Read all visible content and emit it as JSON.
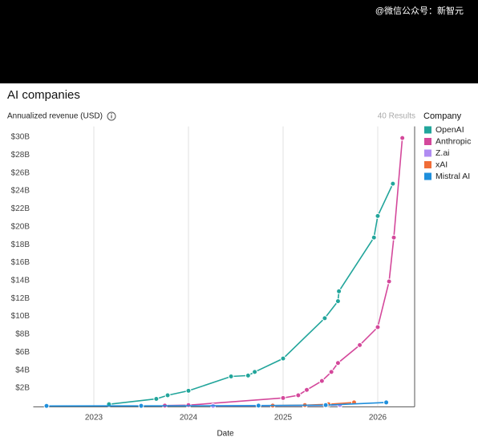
{
  "watermark": "@微信公众号：新智元",
  "chart_data": {
    "type": "line",
    "title": "AI companies",
    "subtitle": "Annualized revenue (USD)",
    "results": "40 Results",
    "legend_title": "Company",
    "x_label": "Date",
    "legend": "right",
    "grid": "x",
    "xlim": [
      2022.36,
      2026.39
    ],
    "xticks": [
      2023,
      2024,
      2025,
      2026
    ],
    "ylim": [
      0,
      31.2
    ],
    "yticks": [
      {
        "value": 2,
        "label": "$2B"
      },
      {
        "value": 4,
        "label": "$4B"
      },
      {
        "value": 6,
        "label": "$6B"
      },
      {
        "value": 8,
        "label": "$8B"
      },
      {
        "value": 10,
        "label": "$10B"
      },
      {
        "value": 12,
        "label": "$12B"
      },
      {
        "value": 14,
        "label": "$14B"
      },
      {
        "value": 16,
        "label": "$16B"
      },
      {
        "value": 18,
        "label": "$18B"
      },
      {
        "value": 20,
        "label": "$20B"
      },
      {
        "value": 22,
        "label": "$22B"
      },
      {
        "value": 24,
        "label": "$24B"
      },
      {
        "value": 26,
        "label": "$26B"
      },
      {
        "value": 28,
        "label": "$28B"
      },
      {
        "value": 30,
        "label": "$30B"
      }
    ],
    "series": [
      {
        "name": "OpenAI",
        "color": "#22a59b",
        "x": [
          2023.16,
          2023.66,
          2023.78,
          2024.0,
          2024.45,
          2024.63,
          2024.7,
          2025.0,
          2025.44,
          2025.58,
          2025.59,
          2025.96,
          2026.0,
          2026.16
        ],
        "values": [
          0.2,
          0.8,
          1.2,
          1.7,
          3.3,
          3.4,
          3.8,
          5.3,
          9.8,
          11.7,
          12.8,
          18.8,
          21.2,
          24.8
        ]
      },
      {
        "name": "Anthropic",
        "color": "#d4489b",
        "x": [
          2023.75,
          2024.0,
          2025.0,
          2025.16,
          2025.25,
          2025.41,
          2025.51,
          2025.58,
          2025.81,
          2026.0,
          2026.12,
          2026.17,
          2026.26
        ],
        "values": [
          0.05,
          0.1,
          0.9,
          1.2,
          1.8,
          2.8,
          3.8,
          4.8,
          6.8,
          8.8,
          13.9,
          18.8,
          29.9
        ]
      },
      {
        "name": "Z.ai",
        "color": "#b08cf2",
        "x": [
          2024.26,
          2025.23,
          2025.6
        ],
        "values": [
          0.01,
          0.05,
          0.1
        ]
      },
      {
        "name": "xAI",
        "color": "#f06d38",
        "x": [
          2024.89,
          2025.23,
          2025.48,
          2025.75
        ],
        "values": [
          0.05,
          0.1,
          0.2,
          0.4
        ]
      },
      {
        "name": "Mistral AI",
        "color": "#1f8fdc",
        "x": [
          2022.5,
          2023.5,
          2024.74,
          2025.45,
          2026.09
        ],
        "values": [
          0.01,
          0.02,
          0.05,
          0.1,
          0.4
        ]
      }
    ]
  }
}
